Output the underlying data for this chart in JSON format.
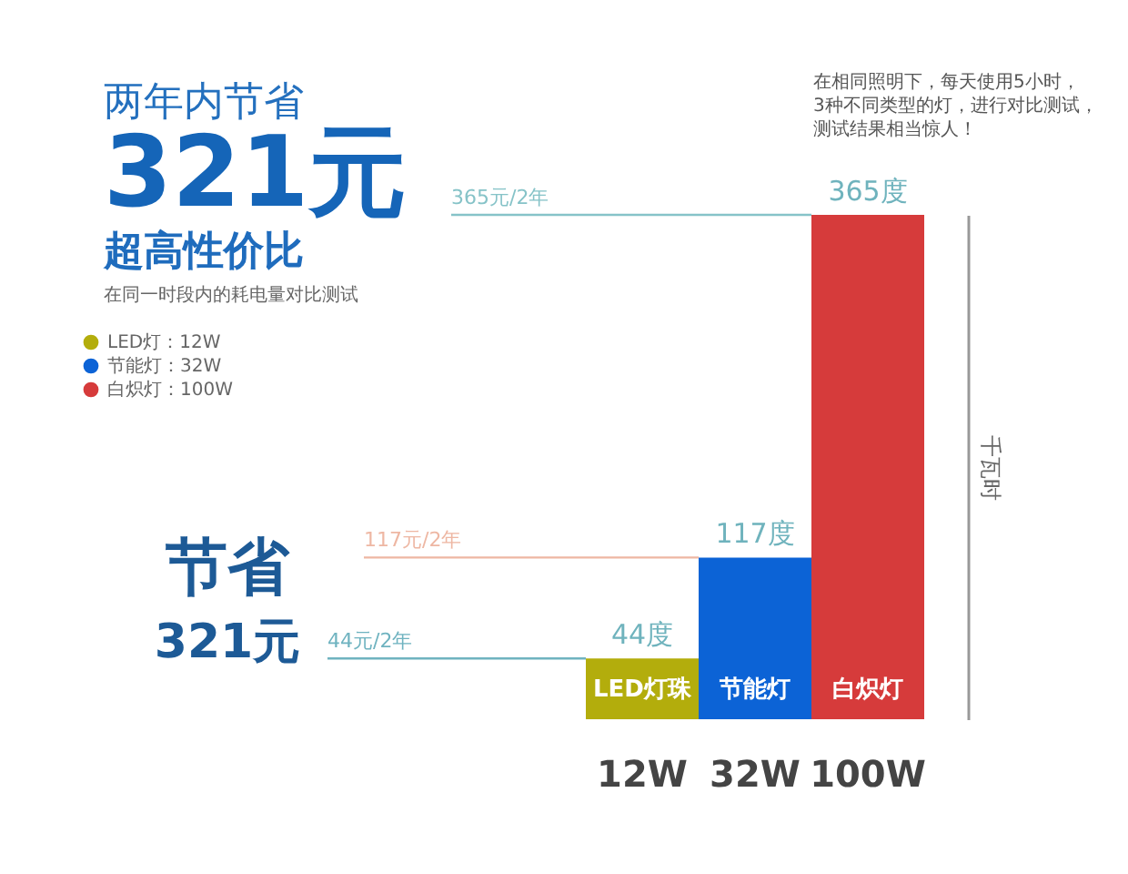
{
  "chart_data": {
    "type": "bar",
    "title": "两年内节省",
    "subtitle": "在同一时段内的耗电量对比测试",
    "ylabel": "千瓦时",
    "categories": [
      "LED灯珠",
      "节能灯",
      "白炽灯"
    ],
    "series": [
      {
        "name": "LED灯：12W",
        "color": "#b3ad0c",
        "values": [
          44,
          null,
          null
        ],
        "value_labels": [
          "44度",
          null,
          null
        ]
      },
      {
        "name": "节能灯：32W",
        "color": "#0c63d6",
        "values": [
          null,
          117,
          null
        ],
        "value_labels": [
          null,
          "117度",
          null
        ]
      },
      {
        "name": "白炽灯：100W",
        "color": "#d63b3b",
        "values": [
          null,
          null,
          365
        ],
        "value_labels": [
          null,
          null,
          "365度"
        ]
      }
    ],
    "ref_lines": [
      {
        "axis": "y",
        "value": 365,
        "label": "365元/2年",
        "color": "#86c3c8"
      },
      {
        "axis": "y",
        "value": 117,
        "label": "117元/2年",
        "color": "#eeb7a3"
      },
      {
        "axis": "y",
        "value": 44,
        "label": "44元/2年",
        "color": "#6fb3c0"
      }
    ],
    "annotations": [
      "321元",
      "超高性价比",
      "在相同照明下，每天使用5小时，3种不同类型的灯，进行对比测试，测试结果相当惊人！",
      "节省",
      "321元",
      "12W",
      "32W",
      "100W"
    ],
    "legend": "left",
    "tick_labels": "x"
  }
}
